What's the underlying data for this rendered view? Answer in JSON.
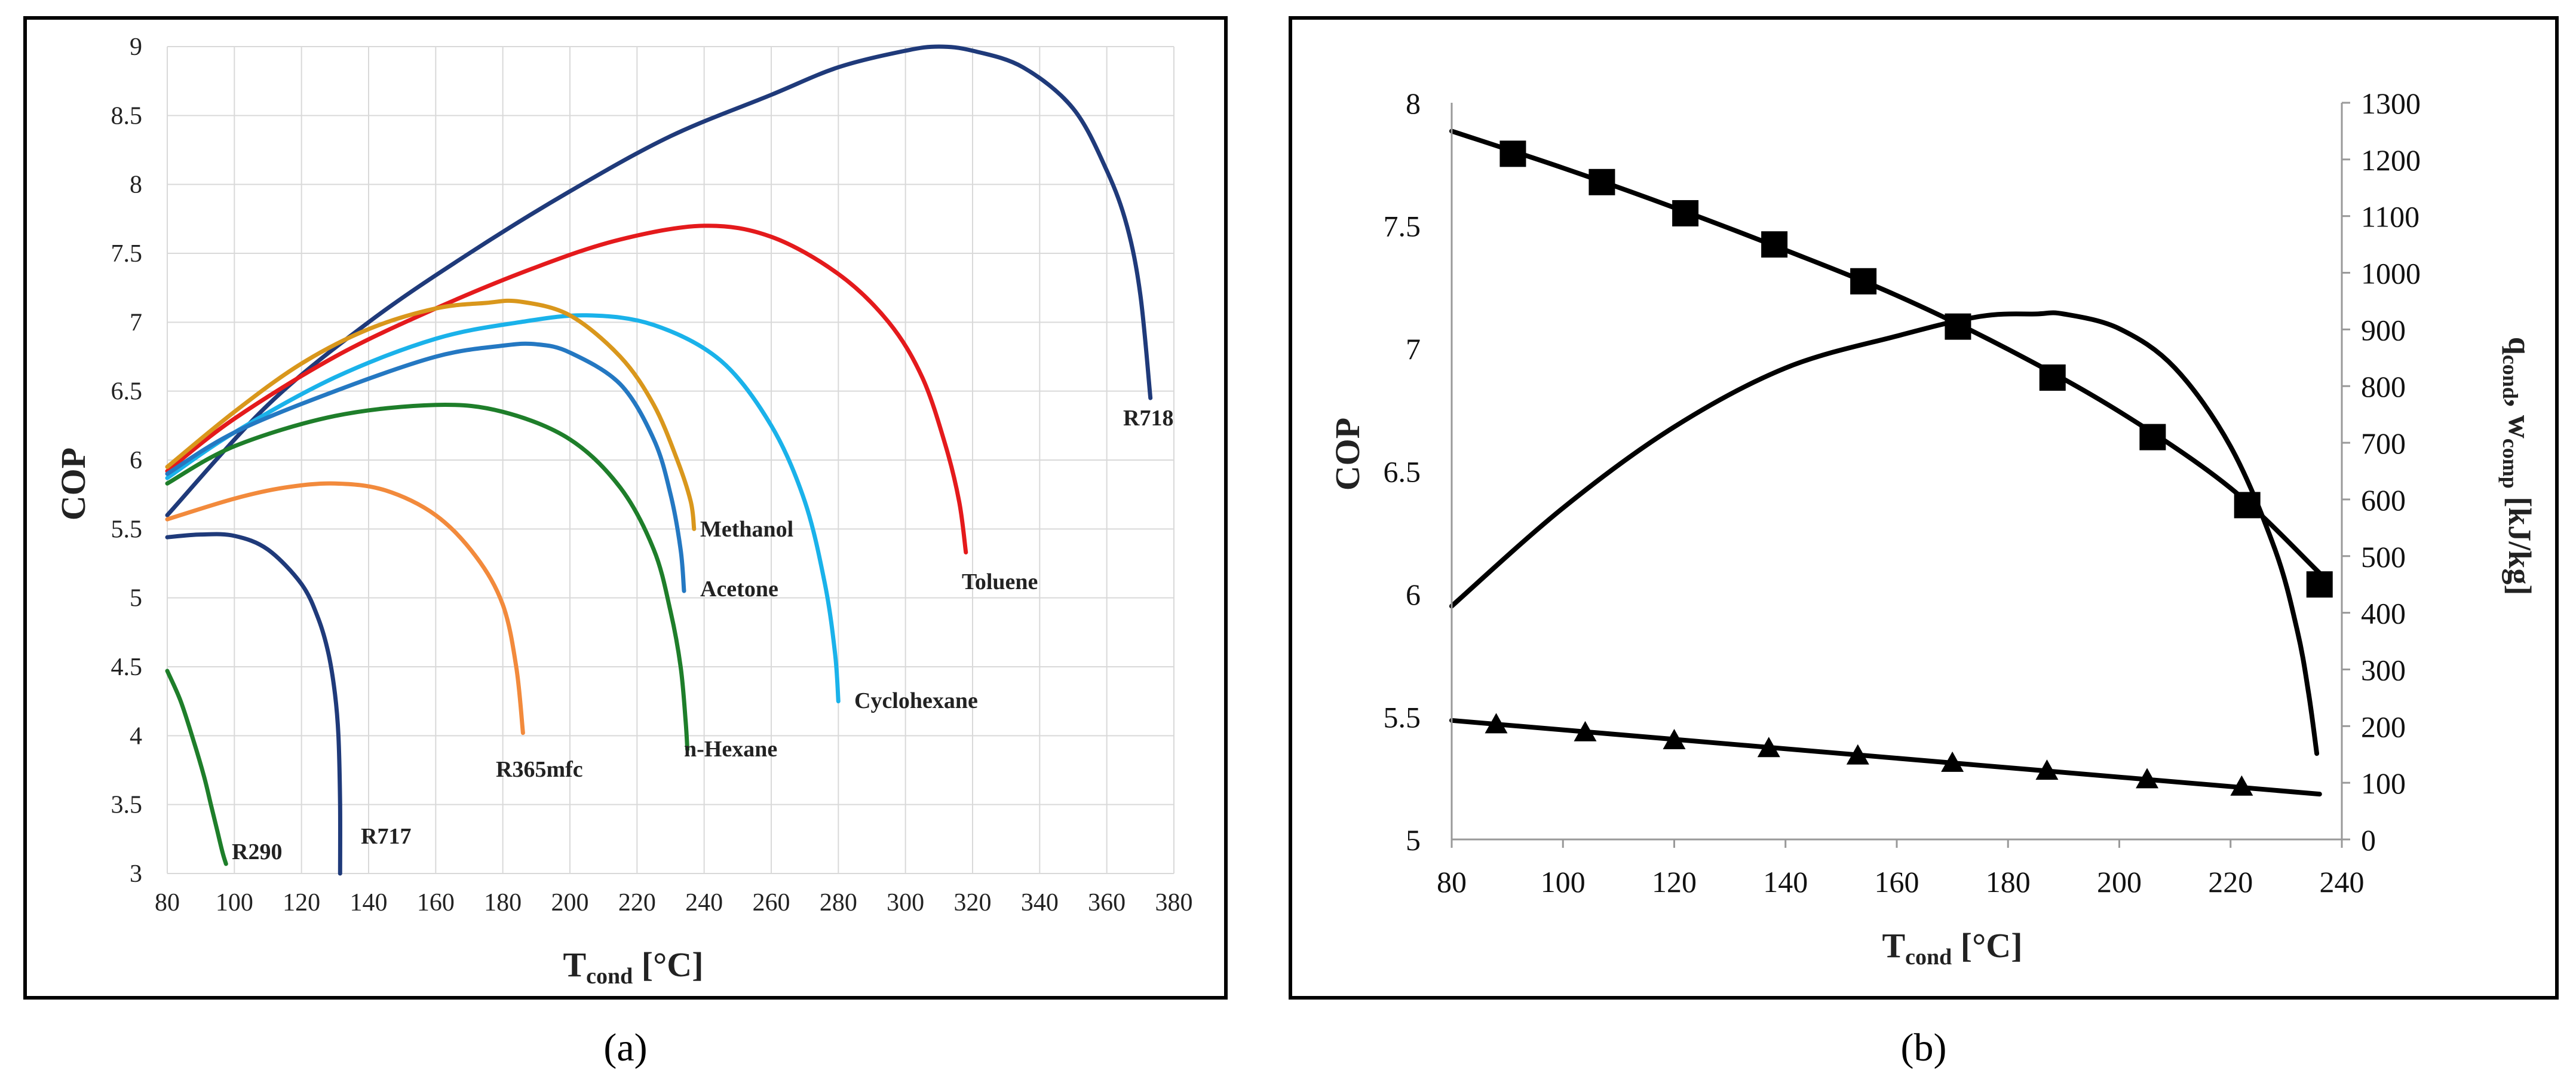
{
  "panels": {
    "a_label": "(a)",
    "b_label": "(b)"
  },
  "chart_data": [
    {
      "type": "line",
      "panel": "a",
      "xlabel_main": "T",
      "xlabel_sub": "cond",
      "xlabel_unit": " [°C]",
      "ylabel": "COP",
      "xlim": [
        80,
        380
      ],
      "ylim": [
        3,
        9
      ],
      "xticks": [
        80,
        100,
        120,
        140,
        160,
        180,
        200,
        220,
        240,
        260,
        280,
        300,
        320,
        340,
        360,
        380
      ],
      "yticks": [
        3,
        3.5,
        4,
        4.5,
        5,
        5.5,
        6,
        6.5,
        7,
        7.5,
        8,
        8.5,
        9
      ],
      "ytick_labels": [
        "3",
        "3.5",
        "4",
        "4.5",
        "5",
        "5.5",
        "6",
        "6.5",
        "7",
        "7.5",
        "8",
        "8.5",
        "9"
      ],
      "grid": true,
      "series": [
        {
          "name": "R718",
          "color": "#1f3a7a",
          "label_color": "#222222",
          "x": [
            80,
            110,
            140,
            170,
            200,
            230,
            260,
            280,
            300,
            310,
            320,
            335,
            350,
            360,
            366,
            370,
            373
          ],
          "y": [
            5.6,
            6.4,
            7.0,
            7.5,
            7.95,
            8.35,
            8.65,
            8.85,
            8.97,
            9.0,
            8.97,
            8.85,
            8.55,
            8.1,
            7.7,
            7.2,
            6.45
          ]
        },
        {
          "name": "Toluene",
          "color": "#e41a1c",
          "label_color": "#222222",
          "x": [
            80,
            100,
            130,
            160,
            190,
            215,
            240,
            260,
            280,
            295,
            305,
            312,
            316,
            318
          ],
          "y": [
            5.92,
            6.3,
            6.75,
            7.1,
            7.4,
            7.6,
            7.7,
            7.62,
            7.35,
            7.0,
            6.6,
            6.1,
            5.7,
            5.33
          ]
        },
        {
          "name": "Cyclohexane",
          "color": "#1ab2ea",
          "label_color": "#222222",
          "x": [
            80,
            100,
            130,
            160,
            185,
            205,
            225,
            245,
            260,
            270,
            276,
            279,
            280
          ],
          "y": [
            5.87,
            6.2,
            6.6,
            6.88,
            7.0,
            7.05,
            6.98,
            6.72,
            6.25,
            5.7,
            5.1,
            4.6,
            4.25
          ]
        },
        {
          "name": "Methanol",
          "color": "#d9971c",
          "label_color": "#222222",
          "x": [
            80,
            100,
            120,
            140,
            160,
            175,
            185,
            200,
            215,
            225,
            232,
            236,
            237
          ],
          "y": [
            5.95,
            6.35,
            6.7,
            6.95,
            7.1,
            7.14,
            7.15,
            7.05,
            6.75,
            6.4,
            6.0,
            5.7,
            5.5
          ]
        },
        {
          "name": "Acetone",
          "color": "#2478c2",
          "label_color": "#222222",
          "x": [
            80,
            100,
            130,
            160,
            180,
            190,
            200,
            215,
            225,
            230,
            233,
            234
          ],
          "y": [
            5.9,
            6.2,
            6.5,
            6.75,
            6.83,
            6.84,
            6.78,
            6.55,
            6.15,
            5.75,
            5.35,
            5.05
          ]
        },
        {
          "name": "n-Hexane",
          "color": "#1e7e2a",
          "label_color": "#777777",
          "x": [
            80,
            100,
            130,
            160,
            180,
            200,
            215,
            225,
            230,
            233,
            234.5,
            235
          ],
          "y": [
            5.83,
            6.1,
            6.32,
            6.4,
            6.35,
            6.15,
            5.8,
            5.35,
            4.9,
            4.5,
            4.1,
            3.9
          ]
        },
        {
          "name": "R365mfc",
          "color": "#f28a3c",
          "label_color": "#222222",
          "x": [
            80,
            100,
            115,
            130,
            145,
            160,
            172,
            180,
            184,
            186
          ],
          "y": [
            5.57,
            5.72,
            5.8,
            5.83,
            5.78,
            5.6,
            5.3,
            4.95,
            4.5,
            4.02
          ]
        },
        {
          "name": "R717",
          "color": "#1f3a7a",
          "label_color": "#222222",
          "x": [
            80,
            90,
            100,
            110,
            120,
            125,
            128,
            130,
            131,
            131.5,
            131.5
          ],
          "y": [
            5.44,
            5.46,
            5.45,
            5.35,
            5.1,
            4.85,
            4.6,
            4.3,
            4.0,
            3.5,
            3.0
          ]
        },
        {
          "name": "R290",
          "color": "#1e7e2a",
          "label_color": "#222222",
          "x": [
            80,
            84,
            88,
            91,
            93,
            95,
            96.5,
            97.5
          ],
          "y": [
            4.47,
            4.25,
            3.95,
            3.7,
            3.5,
            3.3,
            3.15,
            3.07
          ]
        }
      ]
    },
    {
      "type": "line",
      "panel": "b",
      "xlabel_main": "T",
      "xlabel_sub": "cond",
      "xlabel_unit": " [°C]",
      "ylabel": "COP",
      "y2label_q": "q",
      "y2label_q_sub": "cond",
      "y2label_sep": ", w",
      "y2label_w_sub": "comp",
      "y2label_unit": " [kJ/kg]",
      "xlim": [
        80,
        240
      ],
      "ylim": [
        5,
        8
      ],
      "y2lim": [
        0,
        1300
      ],
      "xticks": [
        80,
        100,
        120,
        140,
        160,
        180,
        200,
        220,
        240
      ],
      "yticks": [
        5,
        5.5,
        6,
        6.5,
        7,
        7.5,
        8
      ],
      "ytick_labels": [
        "5",
        "5.5",
        "6",
        "6.5",
        "7",
        "7.5",
        "8"
      ],
      "y2ticks": [
        0,
        100,
        200,
        300,
        400,
        500,
        600,
        700,
        800,
        900,
        1000,
        1100,
        1200,
        1300
      ],
      "grid": false,
      "series": [
        {
          "name": "COP",
          "axis": "left",
          "marker": "none",
          "x": [
            80,
            100,
            120,
            140,
            160,
            175,
            185,
            190,
            200,
            210,
            220,
            228,
            232,
            234,
            235.5
          ],
          "y": [
            5.95,
            6.35,
            6.68,
            6.92,
            7.05,
            7.13,
            7.14,
            7.14,
            7.08,
            6.92,
            6.6,
            6.18,
            5.85,
            5.6,
            5.35
          ]
        },
        {
          "name": "q_cond",
          "axis": "right",
          "marker": "square",
          "x": [
            80,
            100,
            120,
            140,
            160,
            180,
            200,
            220,
            236
          ],
          "y": [
            1250,
            1185,
            1115,
            1040,
            960,
            865,
            755,
            620,
            470
          ],
          "marker_x": [
            91,
            107,
            122,
            138,
            154,
            171,
            188,
            206,
            223,
            236
          ],
          "marker_y": [
            1210,
            1160,
            1105,
            1050,
            985,
            905,
            815,
            710,
            590,
            450
          ]
        },
        {
          "name": "w_comp",
          "axis": "right",
          "marker": "triangle",
          "x": [
            80,
            236
          ],
          "y": [
            210,
            80
          ],
          "marker_x": [
            88,
            104,
            120,
            137,
            153,
            170,
            187,
            205,
            222
          ],
          "marker_y": [
            202,
            188,
            174,
            160,
            147,
            134,
            120,
            105,
            92
          ]
        }
      ]
    }
  ]
}
